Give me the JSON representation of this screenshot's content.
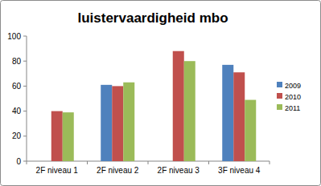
{
  "chart_data": {
    "type": "bar",
    "title": "luistervaardigheid mbo",
    "categories": [
      "2F niveau 1",
      "2F niveau 2",
      "2F niveau 3",
      "3F niveau 4"
    ],
    "series": [
      {
        "name": "2009",
        "color": "#4f81bd",
        "values": [
          null,
          61,
          null,
          77
        ]
      },
      {
        "name": "2010",
        "color": "#c0504d",
        "values": [
          40,
          60,
          88,
          71
        ]
      },
      {
        "name": "2011",
        "color": "#9bbb59",
        "values": [
          39,
          63,
          80,
          49
        ]
      }
    ],
    "ylim": [
      0,
      100
    ],
    "yticks": [
      0,
      20,
      40,
      60,
      80,
      100
    ],
    "grid": false,
    "legend": "right"
  }
}
